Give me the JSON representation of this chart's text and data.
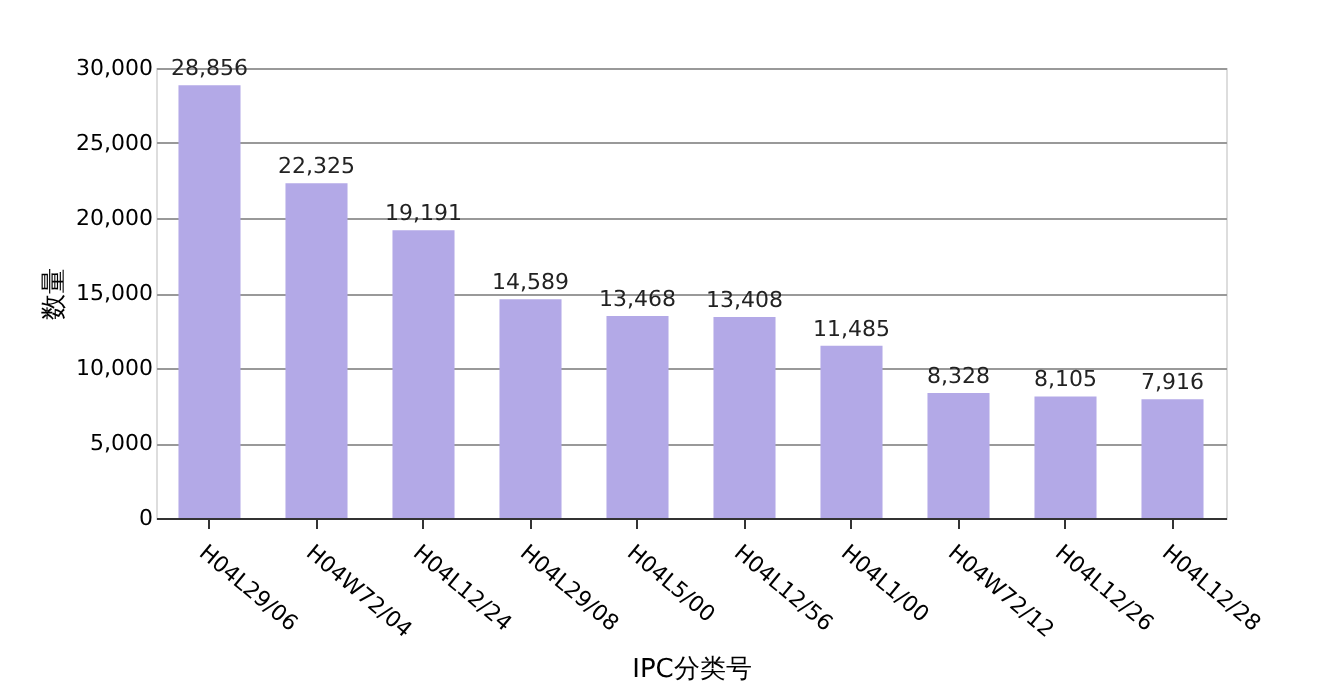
{
  "chart_data": {
    "type": "bar",
    "xlabel": "IPC分类号",
    "ylabel": "数量",
    "categories": [
      "H04L29/06",
      "H04W72/04",
      "H04L12/24",
      "H04L29/08",
      "H04L5/00",
      "H04L12/56",
      "H04L1/00",
      "H04W72/12",
      "H04L12/26",
      "H04L12/28"
    ],
    "values": [
      28856,
      22325,
      19191,
      14589,
      13468,
      13408,
      11485,
      8328,
      8105,
      7916
    ],
    "value_labels": [
      "28,856",
      "22,325",
      "19,191",
      "14,589",
      "13,468",
      "13,408",
      "11,485",
      "8,328",
      "8,105",
      "7,916"
    ],
    "color": "#b3a9e7",
    "ylim": [
      0,
      30000
    ],
    "yticks": [
      {
        "value": 0,
        "label": "0"
      },
      {
        "value": 5000,
        "label": "5,000"
      },
      {
        "value": 10000,
        "label": "10,000"
      },
      {
        "value": 15000,
        "label": "15,000"
      },
      {
        "value": 20000,
        "label": "20,000"
      },
      {
        "value": 25000,
        "label": "25,000"
      },
      {
        "value": 30000,
        "label": "30,000"
      }
    ],
    "grid": "y"
  }
}
